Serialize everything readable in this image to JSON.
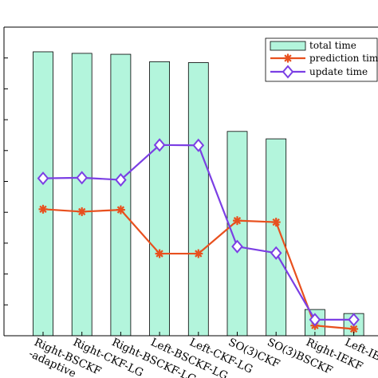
{
  "chart_data": {
    "type": "bar+line",
    "categories": [
      [
        "Right-BSCKF",
        "-adaptive"
      ],
      [
        "Right-CKF-LG"
      ],
      [
        "Right-BSCKF-LG"
      ],
      [
        "Left-BSCKF-LG"
      ],
      [
        "Left-CKF-LG"
      ],
      [
        "SO(3)CKF"
      ],
      [
        "SO(3)BSCKF"
      ],
      [
        "Right-IEKF"
      ],
      [
        "Left-IEKF"
      ]
    ],
    "series": [
      {
        "name": "total time",
        "kind": "bar",
        "color": "#b3f5dc",
        "values": [
          9.2,
          9.15,
          9.12,
          8.88,
          8.85,
          6.62,
          6.38,
          0.85,
          0.72
        ]
      },
      {
        "name": "prediction time",
        "kind": "line",
        "color": "#e8501e",
        "marker": "asterisk",
        "values": [
          4.1,
          4.02,
          4.08,
          2.66,
          2.66,
          3.73,
          3.68,
          0.33,
          0.22
        ]
      },
      {
        "name": "update time",
        "kind": "line",
        "color": "#7b3fe4",
        "marker": "diamond",
        "values": [
          5.1,
          5.12,
          5.05,
          6.18,
          6.17,
          2.89,
          2.68,
          0.52,
          0.52
        ]
      }
    ],
    "ylim": [
      0,
      10
    ],
    "yticks": [
      0,
      1,
      2,
      3,
      4,
      5,
      6,
      7,
      8,
      9,
      10
    ],
    "grid": false,
    "legend_position": "top-right"
  }
}
